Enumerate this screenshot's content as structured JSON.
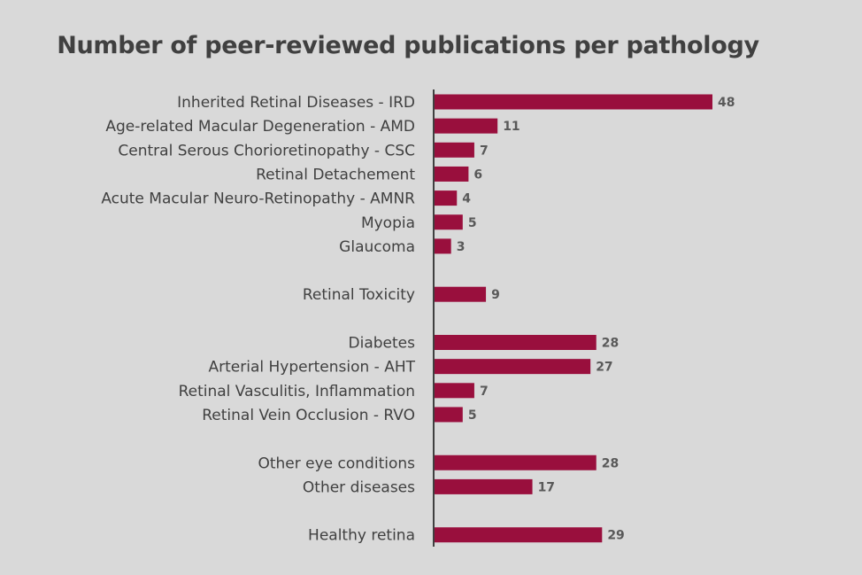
{
  "chart_data": {
    "type": "bar",
    "orientation": "horizontal",
    "title": "Number of peer-reviewed publications per pathology",
    "xlabel": "",
    "ylabel": "",
    "xlim": [
      0,
      48
    ],
    "grid": false,
    "bar_color": "#990f3d",
    "categories": [
      "Inherited Retinal Diseases - IRD",
      "Age-related Macular Degeneration - AMD",
      "Central Serous Chorioretinopathy - CSC",
      "Retinal Detachement",
      "Acute Macular Neuro-Retinopathy - AMNR",
      "Myopia",
      "Glaucoma",
      "",
      "Retinal Toxicity",
      "",
      "Diabetes",
      "Arterial Hypertension - AHT",
      "Retinal Vasculitis, Inflammation",
      "Retinal Vein Occlusion - RVO",
      "",
      "Other eye conditions",
      "Other diseases",
      "",
      "Healthy retina"
    ],
    "values": [
      48,
      11,
      7,
      6,
      4,
      5,
      3,
      null,
      9,
      null,
      28,
      27,
      7,
      5,
      null,
      28,
      17,
      null,
      29
    ]
  }
}
